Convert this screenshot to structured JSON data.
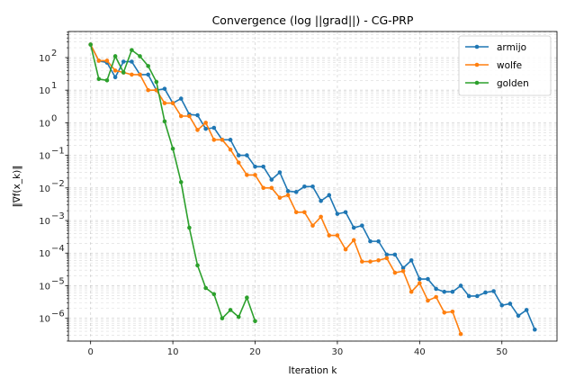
{
  "chart_data": {
    "type": "line",
    "title": "Convergence (log ||grad||) - CG-PRP",
    "xlabel": "Iteration k",
    "ylabel": "‖∇f(x_k)‖",
    "yscale": "log",
    "xlim": [
      -2.7,
      56.7
    ],
    "ylim_exp": [
      -6.7,
      2.8
    ],
    "xticks": [
      0,
      10,
      20,
      30,
      40,
      50
    ],
    "xtick_labels": [
      "0",
      "10",
      "20",
      "30",
      "40",
      "50"
    ],
    "yticks_exp": [
      -6,
      -5,
      -4,
      -3,
      -2,
      -1,
      0,
      1,
      2
    ],
    "ytick_labels": [
      "10",
      "10",
      "10",
      "10",
      "10",
      "10",
      "10",
      "10",
      "10"
    ],
    "ytick_sups": [
      "−6",
      "−5",
      "−4",
      "−3",
      "−2",
      "−1",
      "0",
      "1",
      "2"
    ],
    "grid": true,
    "legend_position": "top-right",
    "series": [
      {
        "name": "armijo",
        "color": "#1f77b4",
        "values": [
          250,
          80,
          70,
          25,
          75,
          75,
          30,
          30,
          10,
          11,
          4,
          5.5,
          1.8,
          1.7,
          0.65,
          0.7,
          0.3,
          0.3,
          0.1,
          0.1,
          0.045,
          0.045,
          0.018,
          0.03,
          0.008,
          0.0075,
          0.011,
          0.011,
          0.004,
          0.006,
          0.0016,
          0.0018,
          0.0006,
          0.0007,
          0.00023,
          0.00023,
          9e-05,
          9e-05,
          3.5e-05,
          6e-05,
          1.6e-05,
          1.6e-05,
          8e-06,
          6.5e-06,
          6.5e-06,
          1e-05,
          4.8e-06,
          4.8e-06,
          6.2e-06,
          6.8e-06,
          2.5e-06,
          2.8e-06,
          1.2e-06,
          1.8e-06,
          4.5e-07
        ]
      },
      {
        "name": "wolfe",
        "color": "#ff7f0e",
        "values": [
          250,
          80,
          80,
          40,
          35,
          30,
          30,
          10,
          10,
          4,
          4,
          1.6,
          1.6,
          0.6,
          1.0,
          0.3,
          0.3,
          0.15,
          0.06,
          0.025,
          0.025,
          0.01,
          0.01,
          0.005,
          0.006,
          0.0018,
          0.0018,
          0.0007,
          0.0013,
          0.00035,
          0.00035,
          0.00013,
          0.00025,
          5.5e-05,
          5.5e-05,
          6e-05,
          7e-05,
          2.5e-05,
          2.8e-05,
          6.5e-06,
          1.2e-05,
          3.5e-06,
          4.5e-06,
          1.5e-06,
          1.6e-06,
          3.3e-07
        ]
      },
      {
        "name": "golden",
        "color": "#2ca02c",
        "values": [
          250,
          22,
          20,
          110,
          35,
          170,
          110,
          55,
          18,
          1.1,
          0.16,
          0.015,
          0.0006,
          4.2e-05,
          8.5e-06,
          5.5e-06,
          1e-06,
          1.8e-06,
          1.1e-06,
          4.3e-06,
          8.2e-07
        ]
      }
    ]
  }
}
